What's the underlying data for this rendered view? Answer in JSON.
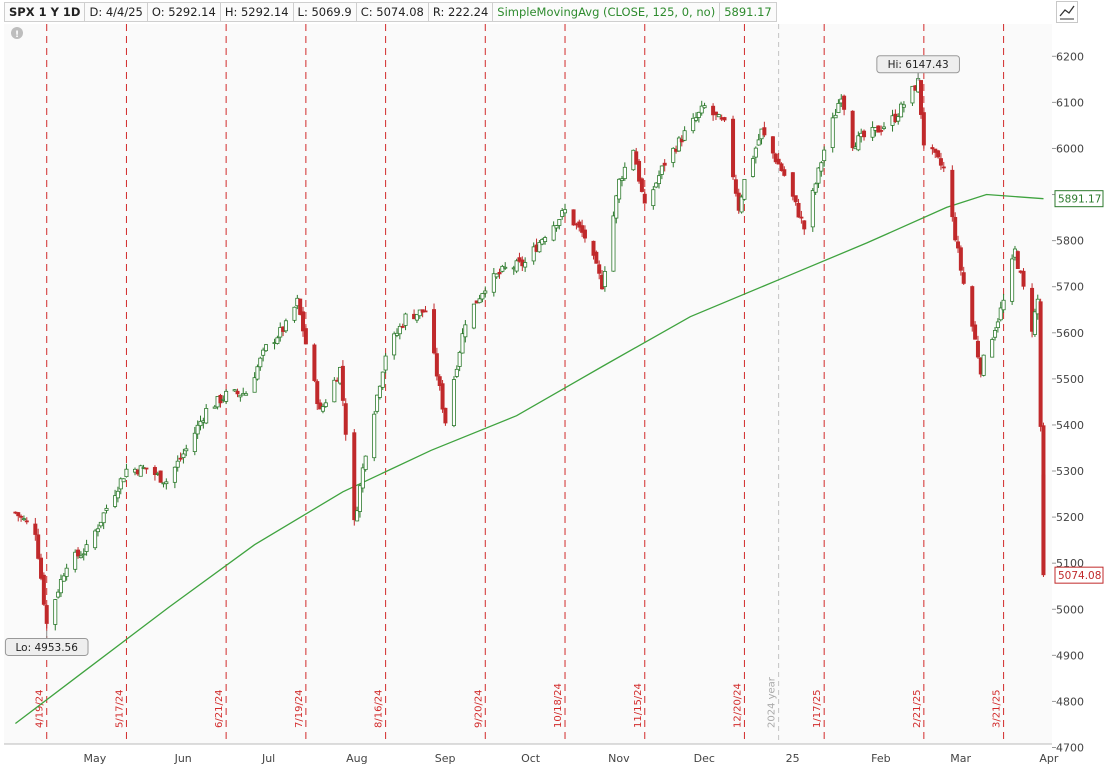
{
  "header": {
    "symbol": "SPX 1 Y 1D",
    "date": "D: 4/4/25",
    "open": "O: 5292.14",
    "high": "H: 5292.14",
    "low": "L: 5069.9",
    "close": "C: 5074.08",
    "range": "R: 222.24",
    "study": "SimpleMovingAvg (CLOSE, 125, 0, no)",
    "study_value": "5891.17"
  },
  "chart_data": {
    "type": "candlestick",
    "ylim": [
      4700,
      6200
    ],
    "y_ticks": [
      4700,
      4800,
      4900,
      5000,
      5100,
      5200,
      5300,
      5400,
      5500,
      5600,
      5700,
      5800,
      5900,
      6000,
      6100,
      6200
    ],
    "x_month_labels": [
      "May",
      "Jun",
      "Jul",
      "Aug",
      "Sep",
      "Oct",
      "Nov",
      "Dec",
      "25",
      "Feb",
      "Mar",
      "Apr"
    ],
    "expiration_lines": [
      "4/19/24",
      "5/17/24",
      "6/21/24",
      "7/19/24",
      "8/16/24",
      "9/20/24",
      "10/18/24",
      "11/15/24",
      "12/20/24",
      "1/17/25",
      "2/21/25",
      "3/21/25"
    ],
    "year_marker": "2024 year",
    "high_callout": "Hi: 6147.43",
    "low_callout": "Lo: 4953.56",
    "sma_label": "5891.17",
    "last_price_label": "5074.08",
    "up_color": "#2d7a2d",
    "down_color": "#c0292b",
    "sma_color": "#3fa33f",
    "expiration_color": "#d22b2b",
    "price_path": [
      [
        "2024-04-08",
        5210
      ],
      [
        "2024-04-15",
        5170
      ],
      [
        "2024-04-19",
        4968
      ],
      [
        "2024-04-26",
        5100
      ],
      [
        "2024-05-03",
        5130
      ],
      [
        "2024-05-10",
        5220
      ],
      [
        "2024-05-17",
        5303
      ],
      [
        "2024-05-24",
        5305
      ],
      [
        "2024-05-31",
        5278
      ],
      [
        "2024-06-07",
        5347
      ],
      [
        "2024-06-14",
        5432
      ],
      [
        "2024-06-21",
        5465
      ],
      [
        "2024-06-28",
        5470
      ],
      [
        "2024-07-05",
        5567
      ],
      [
        "2024-07-12",
        5615
      ],
      [
        "2024-07-16",
        5667
      ],
      [
        "2024-07-24",
        5427
      ],
      [
        "2024-07-31",
        5522
      ],
      [
        "2024-08-05",
        5186
      ],
      [
        "2024-08-09",
        5344
      ],
      [
        "2024-08-16",
        5554
      ],
      [
        "2024-08-23",
        5634
      ],
      [
        "2024-08-30",
        5648
      ],
      [
        "2024-09-06",
        5408
      ],
      [
        "2024-09-13",
        5626
      ],
      [
        "2024-09-20",
        5702
      ],
      [
        "2024-09-27",
        5738
      ],
      [
        "2024-10-04",
        5751
      ],
      [
        "2024-10-11",
        5815
      ],
      [
        "2024-10-18",
        5864
      ],
      [
        "2024-10-25",
        5808
      ],
      [
        "2024-10-31",
        5705
      ],
      [
        "2024-11-06",
        5929
      ],
      [
        "2024-11-11",
        6001
      ],
      [
        "2024-11-15",
        5870
      ],
      [
        "2024-11-22",
        5969
      ],
      [
        "2024-11-29",
        6032
      ],
      [
        "2024-12-06",
        6090
      ],
      [
        "2024-12-13",
        6051
      ],
      [
        "2024-12-18",
        5872
      ],
      [
        "2024-12-20",
        5930
      ],
      [
        "2024-12-26",
        6037
      ],
      [
        "2025-01-03",
        5942
      ],
      [
        "2025-01-10",
        5827
      ],
      [
        "2025-01-17",
        5997
      ],
      [
        "2025-01-23",
        6119
      ],
      [
        "2025-01-27",
        6012
      ],
      [
        "2025-02-04",
        6037
      ],
      [
        "2025-02-11",
        6068
      ],
      [
        "2025-02-19",
        6144
      ],
      [
        "2025-02-21",
        6013
      ],
      [
        "2025-02-28",
        5955
      ],
      [
        "2025-03-06",
        5738
      ],
      [
        "2025-03-13",
        5522
      ],
      [
        "2025-03-21",
        5667
      ],
      [
        "2025-03-25",
        5777
      ],
      [
        "2025-03-31",
        5612
      ],
      [
        "2025-04-02",
        5671
      ],
      [
        "2025-04-03",
        5397
      ],
      [
        "2025-04-04",
        5074
      ]
    ],
    "sma_path": [
      [
        "2024-04-08",
        4752
      ],
      [
        "2024-05-01",
        4860
      ],
      [
        "2024-06-01",
        5005
      ],
      [
        "2024-07-01",
        5140
      ],
      [
        "2024-08-01",
        5255
      ],
      [
        "2024-09-01",
        5345
      ],
      [
        "2024-10-01",
        5420
      ],
      [
        "2024-11-01",
        5530
      ],
      [
        "2024-12-01",
        5635
      ],
      [
        "2025-01-01",
        5715
      ],
      [
        "2025-02-01",
        5795
      ],
      [
        "2025-03-01",
        5872
      ],
      [
        "2025-03-15",
        5900
      ],
      [
        "2025-04-04",
        5891
      ]
    ]
  }
}
